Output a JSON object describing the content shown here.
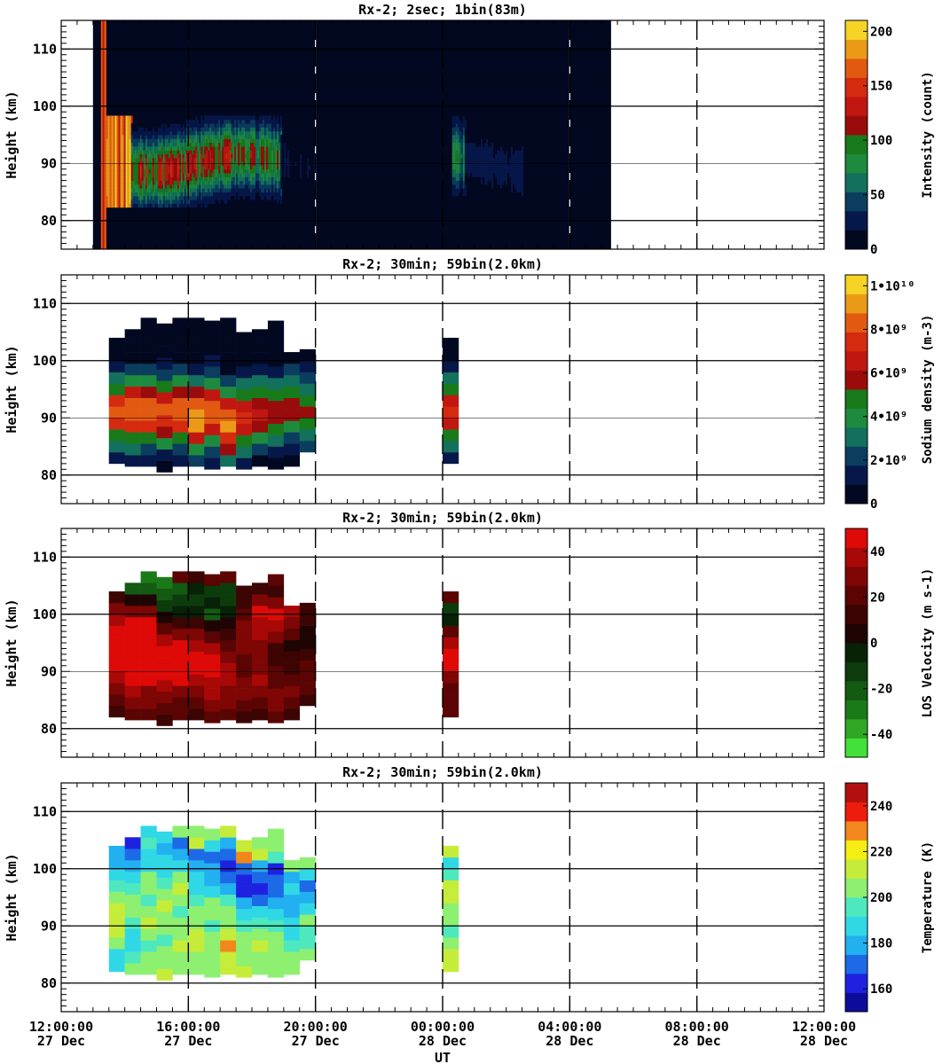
{
  "chart_data": {
    "type": "heatmap",
    "x_axis": {
      "label": "UT",
      "range_hours": [
        12,
        36
      ],
      "ticks": [
        {
          "hours": 12,
          "time": "12:00:00",
          "date": "27 Dec"
        },
        {
          "hours": 16,
          "time": "16:00:00",
          "date": "27 Dec"
        },
        {
          "hours": 20,
          "time": "20:00:00",
          "date": "27 Dec"
        },
        {
          "hours": 24,
          "time": "00:00:00",
          "date": "28 Dec"
        },
        {
          "hours": 28,
          "time": "04:00:00",
          "date": "28 Dec"
        },
        {
          "hours": 32,
          "time": "08:00:00",
          "date": "28 Dec"
        },
        {
          "hours": 36,
          "time": "12:00:00",
          "date": "28 Dec"
        }
      ]
    },
    "panels": [
      {
        "id": "intensity",
        "title": "Rx-2;  2sec; 1bin(83m)",
        "ylabel": "Height (km)",
        "ylim": [
          75,
          115
        ],
        "yticks": [
          80,
          90,
          100,
          110
        ],
        "colorbar": {
          "label": "Intensity (count)",
          "range": [
            0,
            210
          ],
          "ticks": [
            {
              "v": 0,
              "t": "0"
            },
            {
              "v": 50,
              "t": "50"
            },
            {
              "v": 100,
              "t": "100"
            },
            {
              "v": 150,
              "t": "150"
            },
            {
              "v": 200,
              "t": "200"
            }
          ],
          "colors": [
            "#020820",
            "#06174a",
            "#0b3d5e",
            "#12705c",
            "#1e8a3e",
            "#187a1a",
            "#9a0c0c",
            "#c01810",
            "#d42a10",
            "#e25a12",
            "#eb9a18",
            "#f5d425"
          ]
        },
        "data_window_hours": [
          13.0,
          29.3
        ],
        "profile": {
          "center_km": 90,
          "width_km": 5.5,
          "top_km": 98.5,
          "bottom_km": 82.5
        },
        "segments": [
          {
            "t0": 13.0,
            "t1": 13.3,
            "peak": 0.0
          },
          {
            "t0": 13.3,
            "t1": 14.2,
            "peak": 1.0
          },
          {
            "t0": 14.2,
            "t1": 16.0,
            "peak": 0.75
          },
          {
            "t0": 16.0,
            "t1": 17.5,
            "peak": 0.7
          },
          {
            "t0": 17.5,
            "t1": 18.9,
            "peak": 0.6
          },
          {
            "t0": 18.9,
            "t1": 20.0,
            "peak": 0.12
          },
          {
            "t0": 20.0,
            "t1": 24.3,
            "peak": 0.03
          },
          {
            "t0": 24.3,
            "t1": 24.7,
            "peak": 0.45
          },
          {
            "t0": 24.7,
            "t1": 26.5,
            "peak": 0.15
          },
          {
            "t0": 26.5,
            "t1": 29.3,
            "peak": 0.05
          }
        ],
        "vertical_lines": [
          {
            "hours": 20.0
          },
          {
            "hours": 28.0
          }
        ]
      },
      {
        "id": "sodium",
        "title": "Rx-2; 30min; 59bin(2.0km)",
        "ylabel": "Height (km)",
        "ylim": [
          75,
          115
        ],
        "yticks": [
          80,
          90,
          100,
          110
        ],
        "colorbar": {
          "label": "Sodium density (m-3)",
          "range": [
            0,
            10500000000.0
          ],
          "ticks": [
            {
              "v": 0,
              "t": "0"
            },
            {
              "v": 2000000000.0,
              "t": "2•10⁹"
            },
            {
              "v": 4000000000.0,
              "t": "4•10⁹"
            },
            {
              "v": 6000000000.0,
              "t": "6•10⁹"
            },
            {
              "v": 8000000000.0,
              "t": "8•10⁹"
            },
            {
              "v": 10000000000.0,
              "t": "1•10¹⁰"
            }
          ],
          "colors": [
            "#020820",
            "#06174a",
            "#0b3d5e",
            "#12705c",
            "#1e8a3e",
            "#187a1a",
            "#9a0c0c",
            "#c01810",
            "#d42a10",
            "#e25a12",
            "#eb9a18",
            "#f5d425"
          ]
        },
        "columns": [
          {
            "t0": 13.5,
            "t1": 14.0,
            "bottom": 82,
            "top": 104,
            "peak": 0.76,
            "center": 91
          },
          {
            "t0": 14.0,
            "t1": 14.5,
            "bottom": 81.5,
            "top": 105,
            "peak": 0.82,
            "center": 91
          },
          {
            "t0": 14.5,
            "t1": 15.0,
            "bottom": 81.5,
            "top": 106.5,
            "peak": 0.8,
            "center": 91
          },
          {
            "t0": 15.0,
            "t1": 15.5,
            "bottom": 80.5,
            "top": 107,
            "peak": 0.78,
            "center": 91
          },
          {
            "t0": 15.5,
            "t1": 16.0,
            "bottom": 81.5,
            "top": 106.5,
            "peak": 0.8,
            "center": 91
          },
          {
            "t0": 16.0,
            "t1": 16.5,
            "bottom": 81.5,
            "top": 106.5,
            "peak": 0.92,
            "center": 90
          },
          {
            "t0": 16.5,
            "t1": 17.0,
            "bottom": 81,
            "top": 106.5,
            "peak": 0.8,
            "center": 91
          },
          {
            "t0": 17.0,
            "t1": 17.5,
            "bottom": 81.5,
            "top": 106.5,
            "peak": 0.88,
            "center": 89
          },
          {
            "t0": 17.5,
            "t1": 18.0,
            "bottom": 81,
            "top": 105.5,
            "peak": 0.7,
            "center": 90
          },
          {
            "t0": 18.0,
            "t1": 18.5,
            "bottom": 81.5,
            "top": 105.5,
            "peak": 0.62,
            "center": 91
          },
          {
            "t0": 18.5,
            "t1": 19.0,
            "bottom": 81,
            "top": 106,
            "peak": 0.55,
            "center": 91
          },
          {
            "t0": 19.0,
            "t1": 19.5,
            "bottom": 81.5,
            "top": 102,
            "peak": 0.55,
            "center": 92
          },
          {
            "t0": 19.5,
            "t1": 20.0,
            "bottom": 84,
            "top": 101,
            "peak": 0.5,
            "center": 91
          },
          {
            "t0": 24.0,
            "t1": 24.5,
            "bottom": 82,
            "top": 103,
            "peak": 0.68,
            "center": 91
          }
        ]
      },
      {
        "id": "velocity",
        "title": "Rx-2; 30min; 59bin(2.0km)",
        "ylabel": "Height (km)",
        "ylim": [
          75,
          115
        ],
        "yticks": [
          80,
          90,
          100,
          110
        ],
        "colorbar": {
          "label": "LOS Velocity (m s-1)",
          "range": [
            -50,
            50
          ],
          "ticks": [
            {
              "v": -40,
              "t": "-40"
            },
            {
              "v": -20,
              "t": "-20"
            },
            {
              "v": 0,
              "t": "0"
            },
            {
              "v": 20,
              "t": "20"
            },
            {
              "v": 40,
              "t": "40"
            }
          ],
          "colors": [
            "#44e03a",
            "#2ea825",
            "#1b7a18",
            "#135a12",
            "#0d3c0c",
            "#072206",
            "#1e0402",
            "#3c0402",
            "#5a0503",
            "#7e0604",
            "#a80806",
            "#dd0a08"
          ]
        },
        "columns": [
          {
            "t0": 13.5,
            "t1": 14.0,
            "bottom": 82,
            "top": 104,
            "vals": [
              16,
              22,
              30,
              36,
              42,
              48,
              48,
              48,
              40,
              30,
              14
            ]
          },
          {
            "t0": 14.0,
            "t1": 14.5,
            "bottom": 81.5,
            "top": 105,
            "vals": [
              18,
              26,
              34,
              44,
              48,
              48,
              48,
              48,
              46,
              30,
              8,
              -18
            ]
          },
          {
            "t0": 14.5,
            "t1": 15.0,
            "bottom": 81.5,
            "top": 106.5,
            "vals": [
              20,
              26,
              30,
              42,
              48,
              48,
              48,
              46,
              44,
              28,
              2,
              -22,
              -28
            ]
          },
          {
            "t0": 15.0,
            "t1": 15.5,
            "bottom": 80.5,
            "top": 107,
            "vals": [
              16,
              22,
              30,
              38,
              42,
              46,
              44,
              36,
              22,
              8,
              -14,
              -24,
              -26
            ]
          },
          {
            "t0": 15.5,
            "t1": 16.0,
            "bottom": 81.5,
            "top": 106.5,
            "vals": [
              18,
              24,
              30,
              42,
              48,
              48,
              44,
              30,
              14,
              -2,
              -16,
              -22
            ]
          },
          {
            "t0": 16.0,
            "t1": 16.5,
            "bottom": 81.5,
            "top": 106.5,
            "vals": [
              16,
              24,
              30,
              40,
              46,
              44,
              40,
              30,
              14,
              -4,
              -14,
              -8
            ]
          },
          {
            "t0": 16.5,
            "t1": 17.0,
            "bottom": 81,
            "top": 106.5,
            "vals": [
              18,
              26,
              34,
              40,
              46,
              48,
              36,
              20,
              2,
              -22,
              -6,
              -12
            ]
          },
          {
            "t0": 17.0,
            "t1": 17.5,
            "bottom": 81.5,
            "top": 106.5,
            "vals": [
              20,
              26,
              32,
              36,
              34,
              28,
              22,
              14,
              4,
              -6,
              -14,
              -10
            ]
          },
          {
            "t0": 17.5,
            "t1": 18.0,
            "bottom": 81,
            "top": 105.5,
            "vals": [
              12,
              22,
              30,
              26,
              20,
              24,
              30,
              32,
              30,
              22,
              14
            ]
          },
          {
            "t0": 18.0,
            "t1": 18.5,
            "bottom": 81.5,
            "top": 105.5,
            "vals": [
              14,
              18,
              26,
              34,
              28,
              32,
              30,
              34,
              38,
              42,
              28
            ]
          },
          {
            "t0": 18.5,
            "t1": 19.0,
            "bottom": 81,
            "top": 106,
            "vals": [
              20,
              26,
              30,
              24,
              20,
              16,
              14,
              26,
              40,
              42,
              30,
              12
            ]
          },
          {
            "t0": 19.0,
            "t1": 19.5,
            "bottom": 81.5,
            "top": 102,
            "vals": [
              16,
              22,
              28,
              24,
              16,
              10,
              4,
              18,
              30,
              36
            ]
          },
          {
            "t0": 19.5,
            "t1": 20.0,
            "bottom": 84,
            "top": 101,
            "vals": [
              14,
              20,
              24,
              18,
              10,
              2,
              6,
              14
            ]
          },
          {
            "t0": 24.0,
            "t1": 24.5,
            "bottom": 82,
            "top": 103,
            "vals": [
              22,
              24,
              22,
              30,
              44,
              48,
              38,
              18,
              -8,
              -12
            ]
          }
        ]
      },
      {
        "id": "temperature",
        "title": "Rx-2; 30min; 59bin(2.0km)",
        "ylabel": "Height (km)",
        "ylim": [
          75,
          115
        ],
        "yticks": [
          80,
          90,
          100,
          110
        ],
        "colorbar": {
          "label": "Temperature (K)",
          "range": [
            150,
            250
          ],
          "ticks": [
            {
              "v": 160,
              "t": "160"
            },
            {
              "v": 180,
              "t": "180"
            },
            {
              "v": 200,
              "t": "200"
            },
            {
              "v": 220,
              "t": "220"
            },
            {
              "v": 240,
              "t": "240"
            }
          ],
          "colors": [
            "#0d0c9a",
            "#1e22e0",
            "#1c6ae6",
            "#22b0f0",
            "#30d8e6",
            "#4ee8be",
            "#8ef070",
            "#c6ec3a",
            "#f6ee12",
            "#f2871e",
            "#ee1c0c",
            "#b21010"
          ]
        },
        "columns": [
          {
            "t0": 13.5,
            "t1": 14.0,
            "bottom": 82,
            "top": 104,
            "vals": [
              185,
              190,
              200,
              210,
              215,
              210,
              200,
              195,
              190,
              180,
              175
            ]
          },
          {
            "t0": 14.0,
            "t1": 14.5,
            "bottom": 81.5,
            "top": 105,
            "vals": [
              200,
              195,
              190,
              185,
              195,
              205,
              200,
              195,
              185,
              175,
              170,
              160
            ]
          },
          {
            "t0": 14.5,
            "t1": 15.0,
            "bottom": 81.5,
            "top": 106.5,
            "vals": [
              205,
              200,
              195,
              205,
              210,
              200,
              195,
              205,
              200,
              190,
              185,
              195,
              190
            ]
          },
          {
            "t0": 15.0,
            "t1": 15.5,
            "bottom": 80.5,
            "top": 107,
            "vals": [
              215,
              205,
              200,
              195,
              200,
              205,
              210,
              200,
              195,
              190,
              185,
              175,
              190
            ]
          },
          {
            "t0": 15.5,
            "t1": 16.0,
            "bottom": 81.5,
            "top": 106.5,
            "vals": [
              205,
              200,
              215,
              205,
              200,
              195,
              205,
              210,
              200,
              185,
              180,
              170
            ]
          },
          {
            "t0": 16.0,
            "t1": 16.5,
            "bottom": 81.5,
            "top": 106.5,
            "vals": [
              205,
              200,
              210,
              215,
              205,
              200,
              195,
              190,
              185,
              175,
              170,
              215
            ]
          },
          {
            "t0": 16.5,
            "t1": 17.0,
            "bottom": 81,
            "top": 106.5,
            "vals": [
              205,
              200,
              205,
              200,
              195,
              200,
              205,
              190,
              180,
              175,
              170,
              185
            ]
          },
          {
            "t0": 17.0,
            "t1": 17.5,
            "bottom": 81.5,
            "top": 106.5,
            "vals": [
              215,
              215,
              225,
              210,
              205,
              200,
              195,
              180,
              170,
              165,
              170,
              180
            ]
          },
          {
            "t0": 17.5,
            "t1": 18.0,
            "bottom": 81,
            "top": 105.5,
            "vals": [
              210,
              205,
              200,
              205,
              195,
              185,
              175,
              165,
              165,
              170,
              230
            ]
          },
          {
            "t0": 18.0,
            "t1": 18.5,
            "bottom": 81.5,
            "top": 105.5,
            "vals": [
              205,
              200,
              210,
              205,
              195,
              185,
              170,
              165,
              170,
              175,
              215
            ]
          },
          {
            "t0": 18.5,
            "t1": 19.0,
            "bottom": 81,
            "top": 106,
            "vals": [
              205,
              200,
              205,
              200,
              195,
              190,
              180,
              170,
              170,
              165,
              195,
              205
            ]
          },
          {
            "t0": 19.0,
            "t1": 19.5,
            "bottom": 81.5,
            "top": 102,
            "vals": [
              205,
              200,
              195,
              190,
              185,
              180,
              175,
              185,
              180,
              200
            ]
          },
          {
            "t0": 19.5,
            "t1": 20.0,
            "bottom": 84,
            "top": 101,
            "vals": [
              200,
              195,
              195,
              200,
              185,
              175,
              170,
              185
            ]
          },
          {
            "t0": 24.0,
            "t1": 24.5,
            "bottom": 82,
            "top": 103,
            "vals": [
              210,
              215,
              200,
              195,
              205,
              205,
              215,
              210,
              195,
              190
            ]
          }
        ]
      }
    ]
  }
}
